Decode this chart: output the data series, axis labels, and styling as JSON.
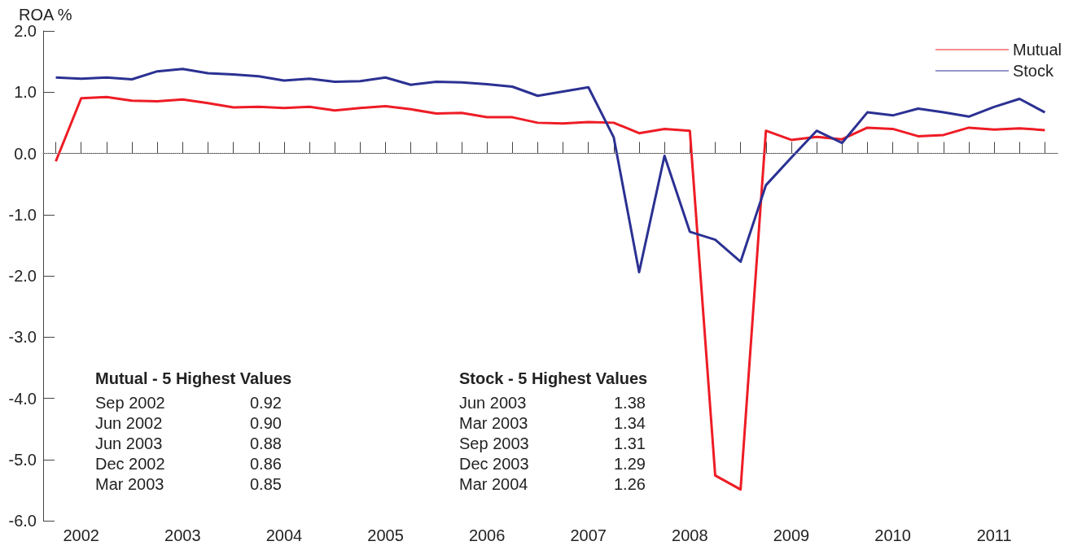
{
  "chart_data": {
    "type": "line",
    "ylabel": "ROA %",
    "categories": [
      null,
      "2002",
      null,
      null,
      null,
      "2003",
      null,
      null,
      null,
      "2004",
      null,
      null,
      null,
      "2005",
      null,
      null,
      null,
      "2006",
      null,
      null,
      null,
      "2007",
      null,
      null,
      null,
      "2008",
      null,
      null,
      null,
      "2009",
      null,
      null,
      null,
      "2010",
      null,
      null,
      null,
      "2011",
      null,
      null
    ],
    "series": [
      {
        "name": "Mutual",
        "color": "#ee1c25",
        "values": [
          -0.13,
          0.9,
          0.92,
          0.86,
          0.85,
          0.88,
          0.82,
          0.75,
          0.76,
          0.74,
          0.76,
          0.7,
          0.74,
          0.77,
          0.72,
          0.65,
          0.66,
          0.59,
          0.59,
          0.5,
          0.49,
          0.51,
          0.5,
          0.33,
          0.4,
          0.37,
          -5.26,
          -5.49,
          0.37,
          0.22,
          0.27,
          0.23,
          0.42,
          0.4,
          0.28,
          0.3,
          0.42,
          0.39,
          0.41,
          0.38
        ]
      },
      {
        "name": "Stock",
        "color": "#2b3192",
        "values": [
          1.24,
          1.22,
          1.24,
          1.21,
          1.34,
          1.38,
          1.31,
          1.29,
          1.26,
          1.19,
          1.22,
          1.17,
          1.18,
          1.24,
          1.12,
          1.17,
          1.16,
          1.13,
          1.09,
          0.94,
          1.01,
          1.08,
          0.26,
          -1.94,
          -0.04,
          -1.28,
          -1.41,
          -1.77,
          -0.52,
          -0.07,
          0.37,
          0.17,
          0.67,
          0.62,
          0.73,
          0.67,
          0.6,
          0.76,
          0.89,
          0.67
        ]
      }
    ],
    "ylim": [
      -6,
      2
    ],
    "yticks": [
      {
        "value": -6,
        "label": "-6.0"
      },
      {
        "value": -5,
        "label": "-5.0"
      },
      {
        "value": -4,
        "label": "-4.0"
      },
      {
        "value": -3,
        "label": "-3.0"
      },
      {
        "value": -2,
        "label": "-2.0"
      },
      {
        "value": -1,
        "label": "-1.0"
      },
      {
        "value": 0,
        "label": "0.0"
      },
      {
        "value": 1,
        "label": "1.0"
      },
      {
        "value": 2,
        "label": "2.0"
      }
    ],
    "ref_lines": [
      {
        "axis": "y",
        "value": 0,
        "label": null,
        "color": "#999999",
        "line_style": "dotted"
      }
    ],
    "grid": false,
    "legend": "top right",
    "marker": "none",
    "line_style": "solid",
    "annotations": [
      "Mutual - 5 Highest Values",
      "Sep 2002",
      "0.92",
      "Jun 2002",
      "0.90",
      "Jun 2003",
      "0.88",
      "Dec 2002",
      "0.86",
      "Mar 2003",
      "0.85",
      "Stock - 5 Highest Values",
      "Jun 2003",
      "1.38",
      "Mar 2003",
      "1.34",
      "Sep 2003",
      "1.31",
      "Dec 2003",
      "1.29",
      "Mar 2004",
      "1.26"
    ]
  }
}
